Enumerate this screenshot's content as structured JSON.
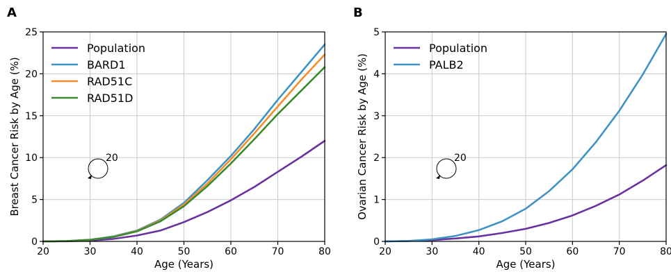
{
  "chart_data": [
    {
      "panel": "A",
      "type": "line",
      "xlabel": "Age (Years)",
      "ylabel": "Breast Cancer Risk by Age (%)",
      "xlim": [
        20,
        80
      ],
      "ylim": [
        0,
        25
      ],
      "xticks": [
        "20",
        "30",
        "40",
        "50",
        "60",
        "70",
        "80"
      ],
      "yticks": [
        "0",
        "5",
        "10",
        "15",
        "20",
        "25"
      ],
      "grid": true,
      "legend": "upper-left",
      "annotation": "20",
      "x": [
        20,
        25,
        30,
        35,
        40,
        45,
        50,
        55,
        60,
        65,
        70,
        75,
        80
      ],
      "series": [
        {
          "name": "Population",
          "color": "#6a329f",
          "values": [
            0.0,
            0.02,
            0.1,
            0.3,
            0.7,
            1.3,
            2.3,
            3.5,
            4.9,
            6.5,
            8.3,
            10.1,
            12.0
          ]
        },
        {
          "name": "BARD1",
          "color": "#3f93c3",
          "values": [
            0.0,
            0.03,
            0.2,
            0.6,
            1.3,
            2.6,
            4.6,
            7.3,
            10.2,
            13.4,
            16.9,
            20.2,
            23.5
          ]
        },
        {
          "name": "RAD51C",
          "color": "#f28e2b",
          "values": [
            0.0,
            0.03,
            0.2,
            0.55,
            1.25,
            2.5,
            4.4,
            6.9,
            9.8,
            12.9,
            16.1,
            19.3,
            22.3
          ]
        },
        {
          "name": "RAD51D",
          "color": "#3a8a2f",
          "values": [
            0.0,
            0.03,
            0.19,
            0.53,
            1.2,
            2.4,
            4.2,
            6.6,
            9.3,
            12.2,
            15.2,
            18.0,
            20.8
          ]
        }
      ]
    },
    {
      "panel": "B",
      "type": "line",
      "xlabel": "Age (Years)",
      "ylabel": "Ovarian Cancer Risk by Age (%)",
      "xlim": [
        20,
        80
      ],
      "ylim": [
        0,
        5
      ],
      "xticks": [
        "20",
        "30",
        "40",
        "50",
        "60",
        "70",
        "80"
      ],
      "yticks": [
        "0",
        "1",
        "2",
        "3",
        "4",
        "5"
      ],
      "grid": true,
      "legend": "upper-left",
      "annotation": "20",
      "x": [
        20,
        25,
        30,
        35,
        40,
        45,
        50,
        55,
        60,
        65,
        70,
        75,
        80
      ],
      "series": [
        {
          "name": "Population",
          "color": "#6a329f",
          "values": [
            0.0,
            0.01,
            0.03,
            0.07,
            0.12,
            0.2,
            0.3,
            0.44,
            0.62,
            0.85,
            1.12,
            1.45,
            1.82
          ]
        },
        {
          "name": "PALB2",
          "color": "#3f93c3",
          "values": [
            0.0,
            0.01,
            0.05,
            0.13,
            0.27,
            0.48,
            0.78,
            1.2,
            1.72,
            2.37,
            3.12,
            3.98,
            4.95
          ]
        }
      ]
    }
  ]
}
